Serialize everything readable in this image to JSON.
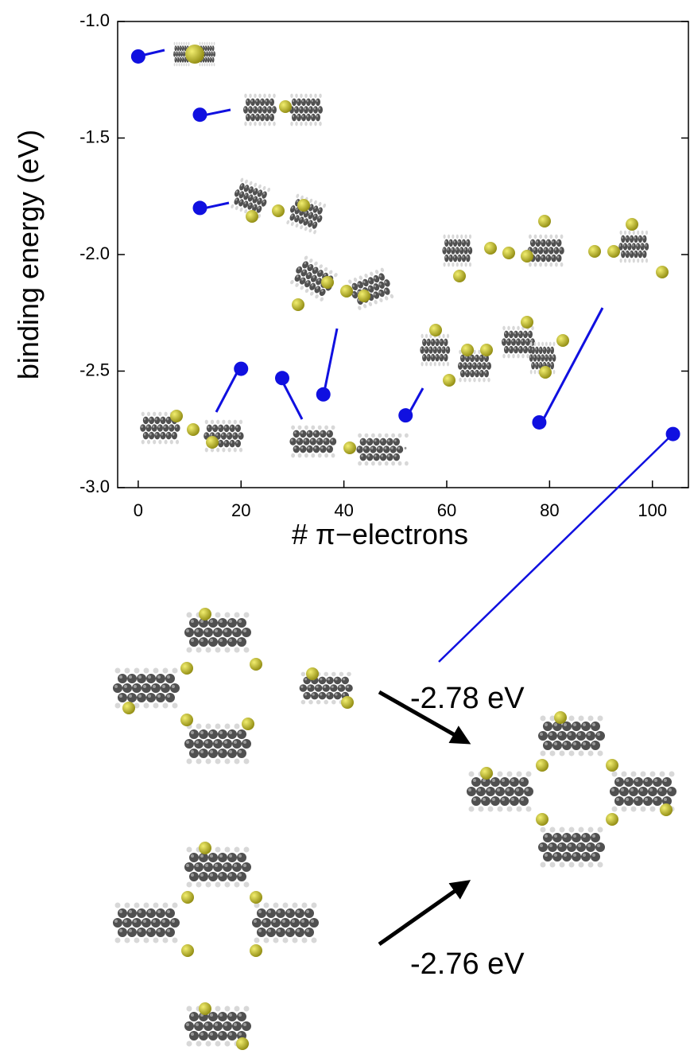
{
  "chart_data": {
    "type": "scatter",
    "x_label": "# π−electrons",
    "y_label": "binding energy (eV)",
    "x": [
      0,
      12,
      12,
      20,
      28,
      36,
      52,
      78,
      104
    ],
    "values": [
      -1.15,
      -1.4,
      -1.8,
      -2.49,
      -2.53,
      -2.6,
      -2.69,
      -2.72,
      -2.77
    ],
    "color": "#1010e0",
    "xlim": [
      -4,
      107
    ],
    "ylim": [
      -3,
      -1
    ],
    "xticks": [
      0,
      20,
      40,
      60,
      80,
      100
    ],
    "yticks": [
      {
        "value": -1,
        "label": "-1.0"
      },
      -1.5,
      {
        "value": -2,
        "label": "-2.0"
      },
      -2.5,
      {
        "value": -3,
        "label": "-3.0"
      }
    ],
    "annotations": [
      "-2.78 eV",
      "-2.76 eV"
    ]
  }
}
